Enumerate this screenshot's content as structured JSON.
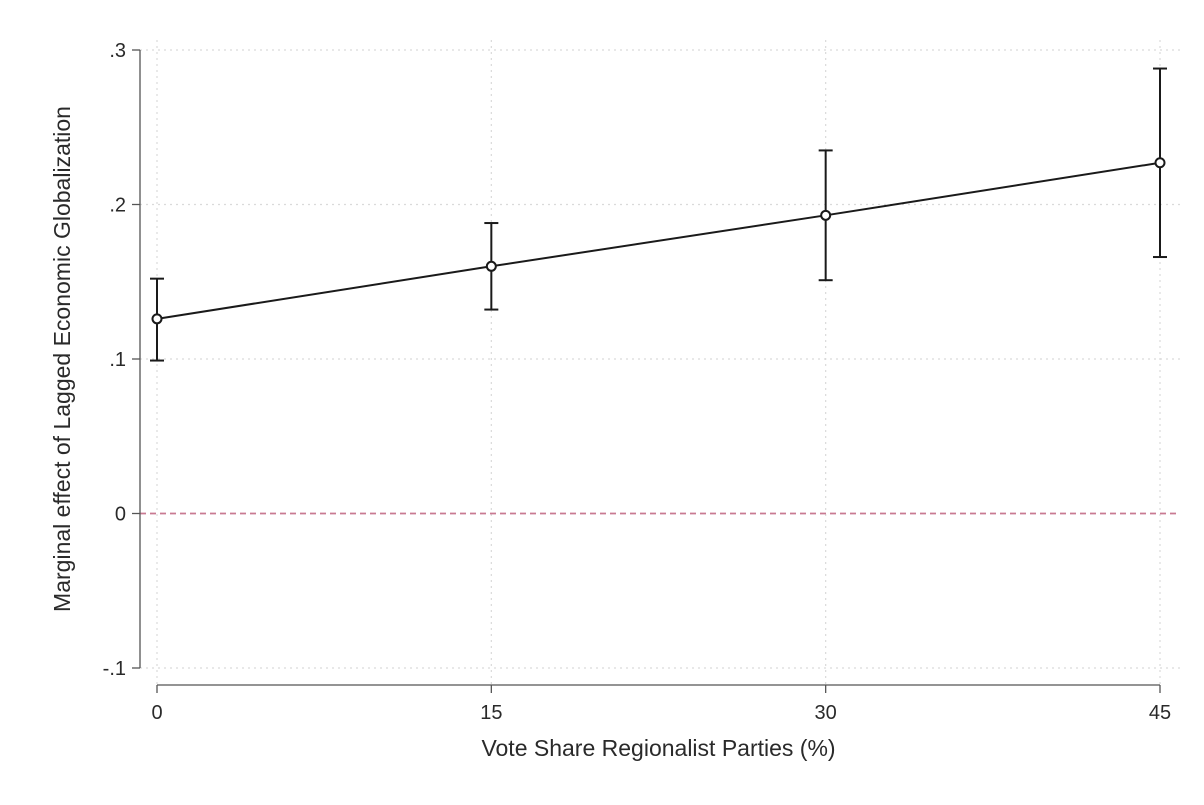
{
  "chart_data": {
    "type": "line",
    "title": "",
    "xlabel": "Vote Share Regionalist Parties (%)",
    "ylabel": "Marginal effect of Lagged Economic Globalization",
    "x": [
      0,
      15,
      30,
      45
    ],
    "x_tick_labels": [
      "0",
      "15",
      "30",
      "45"
    ],
    "y_ticks": [
      -0.1,
      0,
      0.1,
      0.2,
      0.3
    ],
    "y_tick_labels": [
      "-.1",
      "0",
      ".1",
      ".2",
      ".3"
    ],
    "xlim": [
      0,
      45
    ],
    "ylim": [
      -0.1,
      0.3
    ],
    "series": [
      {
        "values": [
          0.126,
          0.16,
          0.193,
          0.227
        ],
        "ci_lower": [
          0.099,
          0.132,
          0.151,
          0.166
        ],
        "ci_upper": [
          0.152,
          0.188,
          0.235,
          0.288
        ]
      }
    ],
    "reference_line": {
      "y": 0,
      "style": "dashed"
    },
    "grid": true,
    "legend": "none",
    "colors": {
      "line": "#1a1a1a",
      "axis": "#555555",
      "grid": "#dadada",
      "reference": "#c97a92"
    }
  }
}
